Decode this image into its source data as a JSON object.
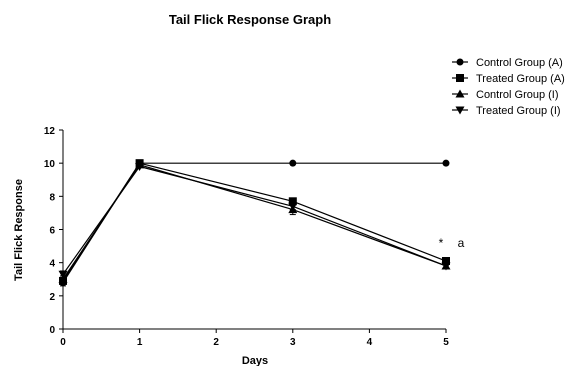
{
  "chart_data": {
    "type": "line",
    "title": "Tail Flick Response Graph",
    "xlabel": "Days",
    "ylabel": "Tail Flick Response",
    "xlim": [
      0,
      5
    ],
    "ylim": [
      0,
      12
    ],
    "x_ticks": [
      "0",
      "1",
      "2",
      "3",
      "4",
      "5"
    ],
    "y_ticks": [
      "0",
      "2",
      "4",
      "6",
      "8",
      "10",
      "12"
    ],
    "grid": false,
    "legend_position": "top-right",
    "series": [
      {
        "name": "Control Group (A)",
        "marker": "circle",
        "x": [
          0,
          1,
          3,
          5
        ],
        "y": [
          2.8,
          10,
          10,
          10
        ],
        "err": [
          0.2,
          0,
          0,
          0
        ]
      },
      {
        "name": "Treated Group (A)",
        "marker": "square",
        "x": [
          0,
          1,
          3,
          5
        ],
        "y": [
          2.9,
          10,
          7.7,
          4.1
        ],
        "err": [
          0.2,
          0,
          0.2,
          0.1
        ]
      },
      {
        "name": "Control Group (I)",
        "marker": "triangle-up",
        "x": [
          0,
          1,
          3,
          5
        ],
        "y": [
          3.0,
          9.9,
          7.2,
          3.8
        ],
        "err": [
          0.2,
          0,
          0.3,
          0.1
        ]
      },
      {
        "name": "Treated Group (I)",
        "marker": "triangle-down",
        "x": [
          0,
          1,
          3,
          5
        ],
        "y": [
          3.3,
          9.8,
          7.4,
          3.8
        ],
        "err": [
          0.2,
          0,
          0.2,
          0.1
        ]
      }
    ],
    "annotations": [
      "*",
      "a"
    ]
  }
}
